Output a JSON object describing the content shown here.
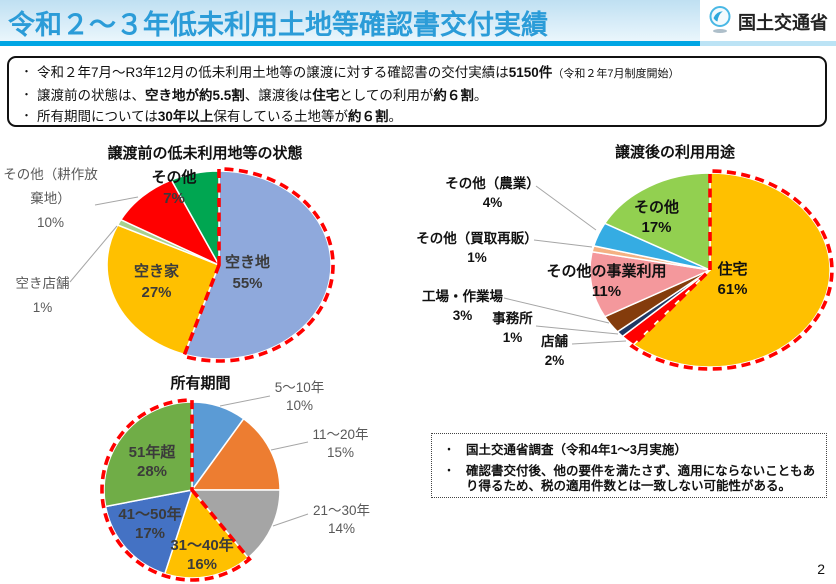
{
  "header": {
    "title": "令和２～３年低未利用土地等確認書交付実績",
    "ministry": "国土交通省",
    "title_color": "#2b9cd8",
    "underline_color": "#00a6e4"
  },
  "bullet_char": "・",
  "summary": {
    "line1": {
      "pre": "令和２年7月～R3年12月の低未利用土地等の譲渡に対する確認書の交付実績は",
      "strong": "5150件",
      "suffix": "（令和２年7月制度開始）"
    },
    "line2": {
      "s1": "譲渡前の状態は、",
      "b1": "空き地が約5.5割",
      "s2": "、譲渡後は",
      "b2": "住宅",
      "s3": "としての利用が",
      "b3": "約６割",
      "s4": "。"
    },
    "line3": {
      "s1": "所有期間については",
      "b1": "30年以上",
      "s2": "保有している土地等が",
      "b2": "約６割",
      "s3": "。"
    }
  },
  "chart_data": [
    {
      "type": "pie",
      "title": "譲渡前の低未利用地等の状態",
      "highlight_range": [
        0,
        55
      ],
      "highlight_color": "#ff0000",
      "slices": [
        {
          "label": "空き地",
          "pct": 55,
          "pct_label": "55%",
          "color": "#8fa9dc"
        },
        {
          "label": "空き家",
          "pct": 27,
          "pct_label": "27%",
          "color": "#ffc000"
        },
        {
          "label": "空き店舗",
          "pct": 1,
          "pct_label": "1%",
          "color": "#a9d08e"
        },
        {
          "label": "その他（耕作放棄地）",
          "pct": 10,
          "pct_label": "10%",
          "color": "#ff0000"
        },
        {
          "label": "その他",
          "pct": 7,
          "pct_label": "7%",
          "color": "#00a651"
        }
      ]
    },
    {
      "type": "pie",
      "title": "譲渡後の利用用途",
      "highlight_range": [
        0,
        61
      ],
      "highlight_color": "#ff0000",
      "slices": [
        {
          "label": "住宅",
          "pct": 61,
          "pct_label": "61%",
          "color": "#ffc000"
        },
        {
          "label": "店舗",
          "pct": 2,
          "pct_label": "2%",
          "color": "#ff0000"
        },
        {
          "label": "事務所",
          "pct": 1,
          "pct_label": "1%",
          "color": "#1f3864"
        },
        {
          "label": "工場・作業場",
          "pct": 3,
          "pct_label": "3%",
          "color": "#843c0c"
        },
        {
          "label": "その他の事業利用",
          "pct": 11,
          "pct_label": "11%",
          "color": "#f4989c"
        },
        {
          "label": "その他（買取再販）",
          "pct": 1,
          "pct_label": "1%",
          "color": "#f4b183"
        },
        {
          "label": "その他（農業）",
          "pct": 4,
          "pct_label": "4%",
          "color": "#35ace3"
        },
        {
          "label": "その他",
          "pct": 17,
          "pct_label": "17%",
          "color": "#92d050"
        }
      ]
    },
    {
      "type": "pie",
      "title": "所有期間",
      "highlight_range": [
        39,
        100
      ],
      "highlight_color": "#ff0000",
      "slices": [
        {
          "label": "5～10年",
          "pct": 10,
          "pct_label": "10%",
          "color": "#5b9bd5"
        },
        {
          "label": "11～20年",
          "pct": 15,
          "pct_label": "15%",
          "color": "#ed7d31"
        },
        {
          "label": "21～30年",
          "pct": 14,
          "pct_label": "14%",
          "color": "#a5a5a5"
        },
        {
          "label": "31～40年",
          "pct": 16,
          "pct_label": "16%",
          "color": "#ffc000"
        },
        {
          "label": "41～50年",
          "pct": 17,
          "pct_label": "17%",
          "color": "#4472c4"
        },
        {
          "label": "51年超",
          "pct": 28,
          "pct_label": "28%",
          "color": "#70ad47"
        }
      ]
    }
  ],
  "note": {
    "items": [
      "国土交通省調査（令和4年1～3月実施）",
      "確認書交付後、他の要件を満たさず、適用にならないこともあり得るため、税の適用件数とは一致しない可能性がある。"
    ]
  },
  "page_number": "2"
}
